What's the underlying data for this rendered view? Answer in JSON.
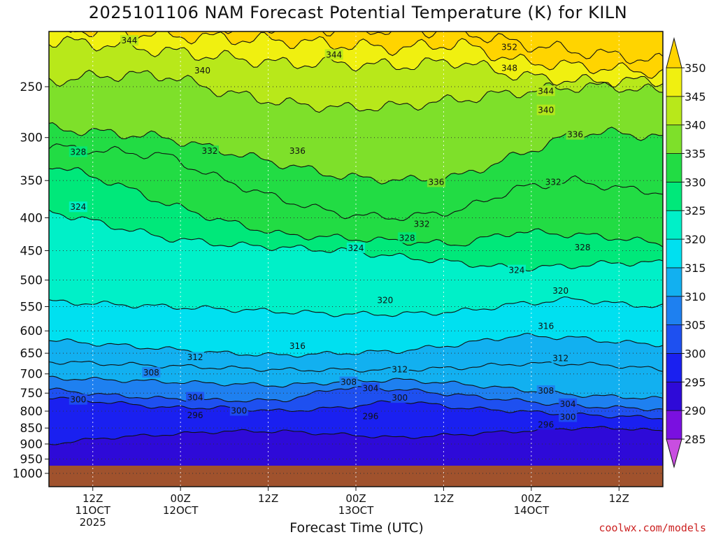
{
  "chart_data": {
    "type": "heatmap",
    "title": "2025101106 NAM Forecast Potential Temperature (K) for KILN",
    "xlabel": "Forecast Time (UTC)",
    "ylabel": "",
    "credit": "coolwx.com/models",
    "y_levels": [
      "1000",
      "950",
      "900",
      "850",
      "800",
      "750",
      "700",
      "650",
      "600",
      "550",
      "500",
      "450",
      "400",
      "350",
      "300",
      "250"
    ],
    "y_range": [
      1000,
      200
    ],
    "x_ticks": [
      {
        "hour": 6,
        "lines": [
          "12Z",
          "11OCT",
          "2025"
        ]
      },
      {
        "hour": 18,
        "lines": [
          "00Z",
          "12OCT"
        ]
      },
      {
        "hour": 30,
        "lines": [
          "12Z"
        ]
      },
      {
        "hour": 42,
        "lines": [
          "00Z",
          "13OCT"
        ]
      },
      {
        "hour": 54,
        "lines": [
          "12Z"
        ]
      },
      {
        "hour": 66,
        "lines": [
          "00Z",
          "14OCT"
        ]
      },
      {
        "hour": 78,
        "lines": [
          "12Z"
        ]
      }
    ],
    "x_range_hours": [
      0,
      84
    ],
    "colorbar": {
      "ticks": [
        285,
        290,
        295,
        300,
        305,
        310,
        315,
        320,
        325,
        330,
        335,
        340,
        345,
        350
      ],
      "colors": [
        "#c84ee0",
        "#7a10e0",
        "#2e0ad8",
        "#1a20f0",
        "#1e50f0",
        "#1e80f0",
        "#12b0f0",
        "#00e0f0",
        "#00f0c8",
        "#00e87a",
        "#22dc44",
        "#7ee02a",
        "#b8e81a",
        "#f0f010",
        "#ffd400"
      ]
    },
    "contour_lines": [
      {
        "value": 296,
        "label": "296"
      },
      {
        "value": 300,
        "label": "300"
      },
      {
        "value": 304,
        "label": "304"
      },
      {
        "value": 308,
        "label": "308"
      },
      {
        "value": 312,
        "label": "312"
      },
      {
        "value": 316,
        "label": "316"
      },
      {
        "value": 320,
        "label": "320"
      },
      {
        "value": 324,
        "label": "324"
      },
      {
        "value": 328,
        "label": "328"
      },
      {
        "value": 332,
        "label": "332"
      },
      {
        "value": 336,
        "label": "336"
      },
      {
        "value": 340,
        "label": "340"
      },
      {
        "value": 344,
        "label": "344"
      },
      {
        "value": 348,
        "label": "348"
      },
      {
        "value": 352,
        "label": "352"
      }
    ],
    "series": [
      {
        "name": "theta_296",
        "levels_hPa": [
          900,
          880,
          870,
          860,
          860,
          870,
          880,
          870,
          860,
          850,
          850,
          860
        ],
        "hours": [
          0,
          8,
          16,
          24,
          32,
          40,
          48,
          56,
          64,
          72,
          78,
          84
        ]
      },
      {
        "name": "theta_300",
        "levels_hPa": [
          760,
          775,
          790,
          790,
          800,
          790,
          770,
          790,
          800,
          810,
          815,
          820
        ],
        "hours": [
          0,
          8,
          16,
          24,
          32,
          40,
          48,
          56,
          64,
          72,
          78,
          84
        ]
      },
      {
        "name": "theta_304",
        "levels_hPa": [
          740,
          755,
          765,
          770,
          770,
          735,
          740,
          755,
          770,
          785,
          790,
          795
        ],
        "hours": [
          0,
          8,
          16,
          24,
          32,
          40,
          48,
          56,
          64,
          72,
          78,
          84
        ]
      },
      {
        "name": "theta_308",
        "levels_hPa": [
          710,
          715,
          720,
          725,
          730,
          720,
          715,
          725,
          740,
          755,
          760,
          765
        ],
        "hours": [
          0,
          8,
          16,
          24,
          32,
          40,
          48,
          56,
          64,
          72,
          78,
          84
        ]
      },
      {
        "name": "theta_312",
        "levels_hPa": [
          670,
          675,
          680,
          685,
          690,
          690,
          690,
          685,
          675,
          675,
          680,
          690
        ],
        "hours": [
          0,
          8,
          16,
          24,
          32,
          40,
          48,
          56,
          64,
          72,
          78,
          84
        ]
      },
      {
        "name": "theta_316",
        "levels_hPa": [
          620,
          630,
          640,
          650,
          655,
          650,
          645,
          630,
          610,
          615,
          625,
          630
        ],
        "hours": [
          0,
          8,
          16,
          24,
          32,
          40,
          48,
          56,
          64,
          72,
          78,
          84
        ]
      },
      {
        "name": "theta_320",
        "levels_hPa": [
          540,
          545,
          550,
          555,
          560,
          565,
          565,
          560,
          545,
          535,
          545,
          550
        ],
        "hours": [
          0,
          8,
          16,
          24,
          32,
          40,
          48,
          56,
          64,
          72,
          78,
          84
        ]
      },
      {
        "name": "theta_324",
        "levels_hPa": [
          390,
          410,
          430,
          440,
          445,
          450,
          460,
          470,
          480,
          475,
          470,
          470
        ],
        "hours": [
          0,
          8,
          16,
          24,
          32,
          40,
          48,
          56,
          64,
          72,
          78,
          84
        ]
      },
      {
        "name": "theta_328",
        "levels_hPa": [
          330,
          350,
          380,
          405,
          425,
          430,
          435,
          440,
          420,
          425,
          430,
          440
        ],
        "hours": [
          0,
          8,
          16,
          24,
          32,
          40,
          48,
          56,
          64,
          72,
          78,
          84
        ]
      },
      {
        "name": "theta_332",
        "levels_hPa": [
          310,
          315,
          320,
          350,
          375,
          395,
          400,
          390,
          360,
          350,
          360,
          365
        ],
        "hours": [
          0,
          8,
          16,
          24,
          32,
          40,
          48,
          56,
          64,
          72,
          78,
          84
        ]
      },
      {
        "name": "theta_336",
        "levels_hPa": [
          290,
          295,
          300,
          315,
          330,
          345,
          350,
          345,
          320,
          295,
          295,
          300
        ],
        "hours": [
          0,
          8,
          16,
          24,
          32,
          40,
          48,
          56,
          64,
          72,
          78,
          84
        ]
      },
      {
        "name": "theta_340",
        "levels_hPa": [
          245,
          240,
          240,
          255,
          265,
          270,
          268,
          262,
          255,
          250,
          250,
          255
        ],
        "hours": [
          0,
          8,
          16,
          24,
          32,
          40,
          48,
          56,
          64,
          72,
          78,
          84
        ]
      },
      {
        "name": "theta_344",
        "levels_hPa": [
          212,
          215,
          220,
          225,
          230,
          230,
          232,
          228,
          240,
          245,
          245,
          245
        ],
        "hours": [
          0,
          8,
          16,
          24,
          32,
          40,
          48,
          56,
          64,
          72,
          78,
          84
        ]
      },
      {
        "name": "theta_348",
        "levels_hPa": [
          202,
          205,
          208,
          210,
          212,
          215,
          218,
          214,
          228,
          232,
          235,
          238
        ],
        "hours": [
          0,
          8,
          16,
          24,
          32,
          40,
          48,
          56,
          64,
          72,
          78,
          84
        ]
      },
      {
        "name": "theta_352",
        "levels_hPa": [
          200,
          200,
          200,
          201,
          202,
          203,
          204,
          204,
          214,
          220,
          224,
          228
        ],
        "hours": [
          0,
          8,
          16,
          24,
          32,
          40,
          48,
          56,
          64,
          72,
          78,
          84
        ]
      }
    ],
    "contour_label_positions": [
      {
        "label": "344",
        "hour": 11,
        "hPa": 212
      },
      {
        "label": "344",
        "hour": 39,
        "hPa": 223
      },
      {
        "label": "352",
        "hour": 63,
        "hPa": 217
      },
      {
        "label": "340",
        "hour": 21,
        "hPa": 236
      },
      {
        "label": "348",
        "hour": 63,
        "hPa": 234
      },
      {
        "label": "344",
        "hour": 68,
        "hPa": 254
      },
      {
        "label": "340",
        "hour": 68,
        "hPa": 272
      },
      {
        "label": "336",
        "hour": 72,
        "hPa": 297
      },
      {
        "label": "328",
        "hour": 4,
        "hPa": 316
      },
      {
        "label": "332",
        "hour": 22,
        "hPa": 315
      },
      {
        "label": "336",
        "hour": 34,
        "hPa": 315
      },
      {
        "label": "336",
        "hour": 53,
        "hPa": 352
      },
      {
        "label": "332",
        "hour": 69,
        "hPa": 352
      },
      {
        "label": "324",
        "hour": 4,
        "hPa": 385
      },
      {
        "label": "332",
        "hour": 51,
        "hPa": 409
      },
      {
        "label": "328",
        "hour": 49,
        "hPa": 430
      },
      {
        "label": "324",
        "hour": 42,
        "hPa": 446
      },
      {
        "label": "328",
        "hour": 73,
        "hPa": 445
      },
      {
        "label": "324",
        "hour": 64,
        "hPa": 483
      },
      {
        "label": "320",
        "hour": 46,
        "hPa": 538
      },
      {
        "label": "320",
        "hour": 70,
        "hPa": 520
      },
      {
        "label": "316",
        "hour": 68,
        "hPa": 590
      },
      {
        "label": "316",
        "hour": 34,
        "hPa": 634
      },
      {
        "label": "312",
        "hour": 20,
        "hPa": 660
      },
      {
        "label": "312",
        "hour": 48,
        "hPa": 689
      },
      {
        "label": "312",
        "hour": 70,
        "hPa": 662
      },
      {
        "label": "308",
        "hour": 14,
        "hPa": 697
      },
      {
        "label": "308",
        "hour": 41,
        "hPa": 721
      },
      {
        "label": "304",
        "hour": 44,
        "hPa": 737
      },
      {
        "label": "308",
        "hour": 68,
        "hPa": 744
      },
      {
        "label": "300",
        "hour": 4,
        "hPa": 768
      },
      {
        "label": "304",
        "hour": 20,
        "hPa": 762
      },
      {
        "label": "300",
        "hour": 48,
        "hPa": 763
      },
      {
        "label": "304",
        "hour": 71,
        "hPa": 780
      },
      {
        "label": "300",
        "hour": 26,
        "hPa": 799
      },
      {
        "label": "296",
        "hour": 20,
        "hPa": 812
      },
      {
        "label": "296",
        "hour": 44,
        "hPa": 815
      },
      {
        "label": "300",
        "hour": 71,
        "hPa": 817
      },
      {
        "label": "296",
        "hour": 68,
        "hPa": 840
      }
    ]
  }
}
